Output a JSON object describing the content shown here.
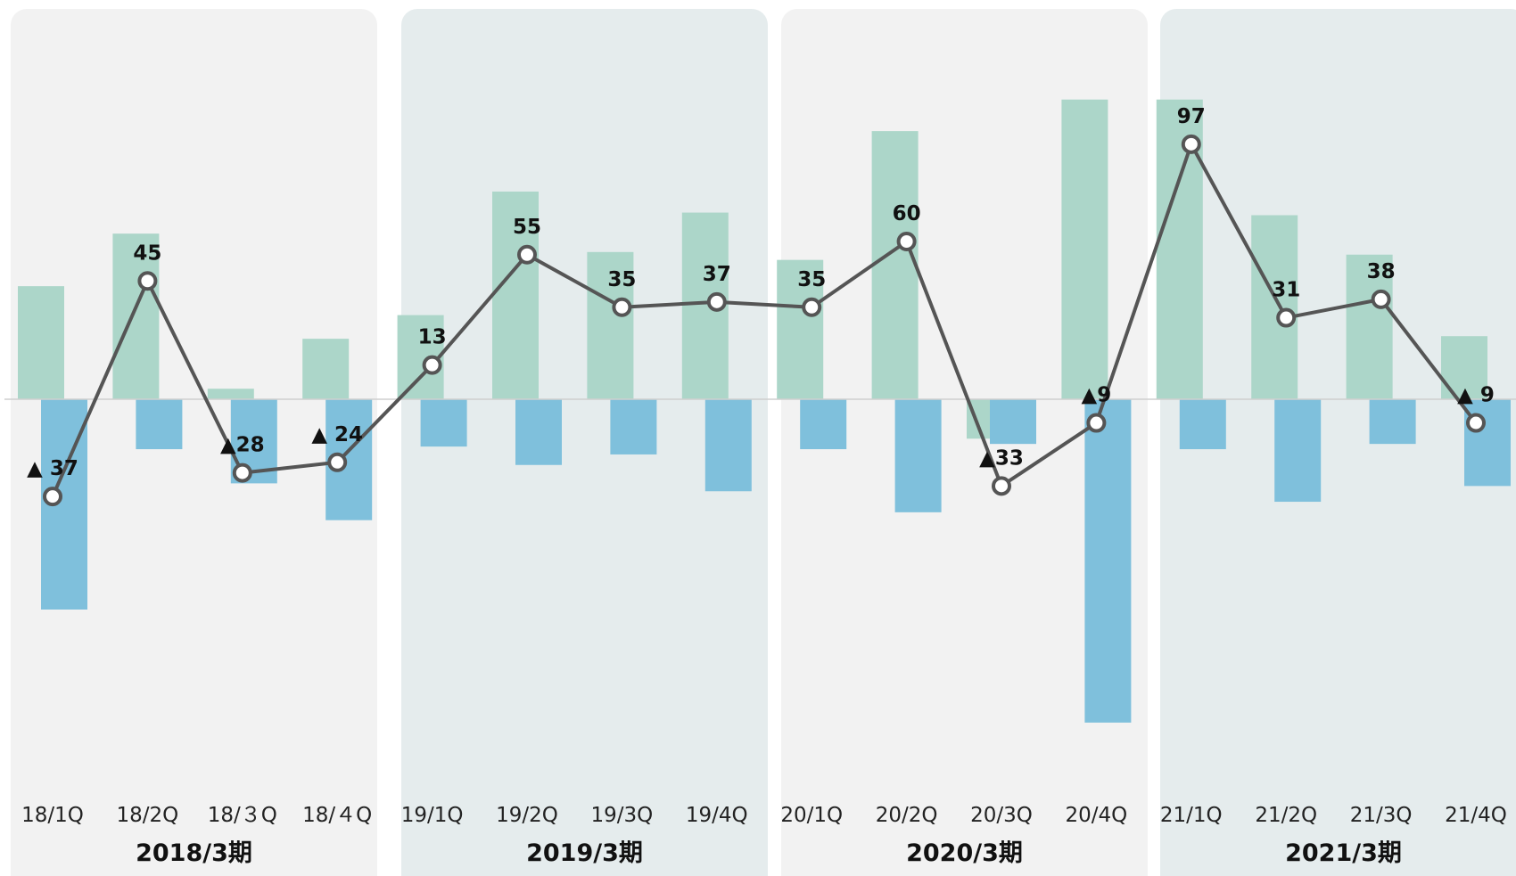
{
  "chart_data": {
    "type": "bar",
    "categories": [
      "18/1Q",
      "18/2Q",
      "18/３Q",
      "18/４Q",
      "19/1Q",
      "19/2Q",
      "19/3Q",
      "19/4Q",
      "20/1Q",
      "20/2Q",
      "20/3Q",
      "20/4Q",
      "21/1Q",
      "21/2Q",
      "21/3Q",
      "21/4Q"
    ],
    "periods": [
      {
        "label": "2018/3期",
        "categories": [
          "18/1Q",
          "18/2Q",
          "18/３Q",
          "18/４Q"
        ]
      },
      {
        "label": "2019/3期",
        "categories": [
          "19/1Q",
          "19/2Q",
          "19/3Q",
          "19/4Q"
        ]
      },
      {
        "label": "2020/3期",
        "categories": [
          "20/1Q",
          "20/2Q",
          "20/3Q",
          "20/4Q"
        ]
      },
      {
        "label": "2021/3期",
        "categories": [
          "21/1Q",
          "21/2Q",
          "21/3Q",
          "21/4Q"
        ]
      }
    ],
    "series": [
      {
        "type": "bar",
        "values": [
          43,
          63,
          4,
          23,
          32,
          79,
          56,
          71,
          53,
          102,
          -15,
          114,
          114,
          70,
          55,
          24
        ]
      },
      {
        "type": "bar",
        "values": [
          -80,
          -19,
          -32,
          -46,
          -18,
          -25,
          -21,
          -35,
          -19,
          -43,
          -17,
          -123,
          -19,
          -39,
          -17,
          -33
        ]
      },
      {
        "type": "line",
        "values": [
          -37,
          45,
          -28,
          -24,
          13,
          55,
          35,
          37,
          35,
          60,
          -33,
          -9,
          97,
          31,
          38,
          -9
        ],
        "data_labels": [
          "▲ 37",
          "45",
          "▲28",
          "▲ 24",
          "13",
          "55",
          "35",
          "37",
          "35",
          "60",
          "▲33",
          "▲9",
          "97",
          "31",
          "38",
          "▲ 9"
        ]
      }
    ],
    "ylim": [
      -155,
      150
    ],
    "grid": false,
    "legend": "none",
    "colors": {
      "bar_positive": "#acd6c9",
      "bar_negative": "#7fc0dc",
      "line": "#555555",
      "marker_fill": "#ffffff",
      "period_bg_a": "#f2f2f2",
      "period_bg_b": "#e5eced",
      "zero_line": "#cfcfcf"
    }
  }
}
